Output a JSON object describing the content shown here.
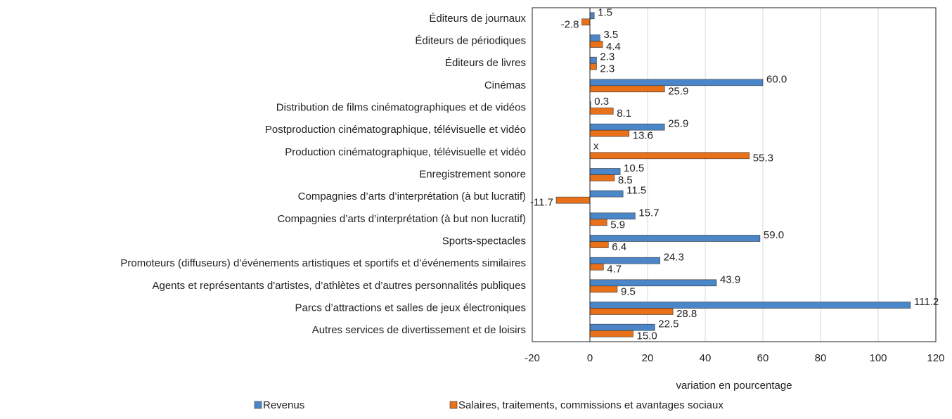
{
  "chart_data": {
    "type": "hbar",
    "categories": [
      "Éditeurs de journaux",
      "Éditeurs de périodiques",
      "Éditeurs de livres",
      "Cinémas",
      "Distribution de films cinématographiques et de vidéos",
      "Postproduction cinématographique, télévisuelle et vidéo",
      "Production cinématographique, télévisuelle et vidéo",
      "Enregistrement sonore",
      "Compagnies d’arts d’interprétation (à but lucratif)",
      "Compagnies d’arts d’interprétation (à but non lucratif)",
      "Sports-spectacles",
      "Promoteurs (diffuseurs) d’événements artistiques et sportifs et d’événements similaires",
      "Agents et représentants d'artistes, d’athlètes et d’autres personnalités publiques",
      "Parcs d’attractions et salles de jeux électroniques",
      "Autres services de divertissement et de loisirs"
    ],
    "series": [
      {
        "name": "Revenus",
        "color": "#4a86c8",
        "values": [
          1.5,
          3.5,
          2.3,
          60.0,
          0.3,
          25.9,
          null,
          10.5,
          11.5,
          15.7,
          59.0,
          24.3,
          43.9,
          111.2,
          22.5
        ],
        "value_labels": [
          "1.5",
          "3.5",
          "2.3",
          "60.0",
          "0.3",
          "25.9",
          "x",
          "10.5",
          "11.5",
          "15.7",
          "59.0",
          "24.3",
          "43.9",
          "111.2",
          "22.5"
        ]
      },
      {
        "name": "Salaires, traitements, commissions et avantages sociaux",
        "color": "#e8711a",
        "values": [
          -2.8,
          4.4,
          2.3,
          25.9,
          8.1,
          13.6,
          55.3,
          8.5,
          -11.7,
          5.9,
          6.4,
          4.7,
          9.5,
          28.8,
          15.0
        ],
        "value_labels": [
          "-2.8",
          "4.4",
          "2.3",
          "25.9",
          "8.1",
          "13.6",
          "55.3",
          "8.5",
          "-11.7",
          "5.9",
          "6.4",
          "4.7",
          "9.5",
          "28.8",
          "15.0"
        ]
      }
    ],
    "x_label": "variation en pourcentage",
    "xlim": [
      -20,
      120
    ],
    "xticks": [
      -20,
      0,
      20,
      40,
      60,
      80,
      100,
      120
    ],
    "grid": true
  }
}
